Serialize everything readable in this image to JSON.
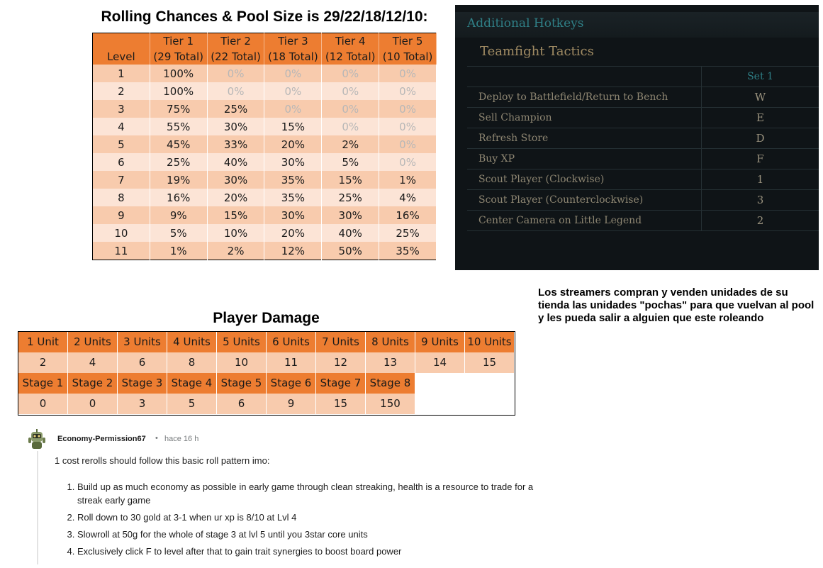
{
  "rolling": {
    "title": "Rolling Chances & Pool Size is 29/22/18/12/10:",
    "level_header": "Level",
    "tiers": [
      {
        "name": "Tier 1",
        "total": "(29 Total)"
      },
      {
        "name": "Tier 2",
        "total": "(22 Total)"
      },
      {
        "name": "Tier 3",
        "total": "(18 Total)"
      },
      {
        "name": "Tier 4",
        "total": "(12 Total)"
      },
      {
        "name": "Tier 5",
        "total": "(10 Total)"
      }
    ],
    "rows": [
      {
        "level": "1",
        "odds": [
          "100%",
          "0%",
          "0%",
          "0%",
          "0%"
        ]
      },
      {
        "level": "2",
        "odds": [
          "100%",
          "0%",
          "0%",
          "0%",
          "0%"
        ]
      },
      {
        "level": "3",
        "odds": [
          "75%",
          "25%",
          "0%",
          "0%",
          "0%"
        ]
      },
      {
        "level": "4",
        "odds": [
          "55%",
          "30%",
          "15%",
          "0%",
          "0%"
        ]
      },
      {
        "level": "5",
        "odds": [
          "45%",
          "33%",
          "20%",
          "2%",
          "0%"
        ]
      },
      {
        "level": "6",
        "odds": [
          "25%",
          "40%",
          "30%",
          "5%",
          "0%"
        ]
      },
      {
        "level": "7",
        "odds": [
          "19%",
          "30%",
          "35%",
          "15%",
          "1%"
        ]
      },
      {
        "level": "8",
        "odds": [
          "16%",
          "20%",
          "35%",
          "25%",
          "4%"
        ]
      },
      {
        "level": "9",
        "odds": [
          "9%",
          "15%",
          "30%",
          "30%",
          "16%"
        ]
      },
      {
        "level": "10",
        "odds": [
          "5%",
          "10%",
          "20%",
          "40%",
          "25%"
        ]
      },
      {
        "level": "11",
        "odds": [
          "1%",
          "2%",
          "12%",
          "50%",
          "35%"
        ]
      }
    ],
    "colors": {
      "header": "#ed7d31",
      "row_dark": "#f8cbad",
      "row_light": "#fce4d6",
      "zero_text": "#b7b7b7"
    }
  },
  "hotkeys": {
    "title": "Additional Hotkeys",
    "subtitle": "Teamfight Tactics",
    "column_header": "Set 1",
    "rows": [
      {
        "action": "Deploy to Battlefield/Return to Bench",
        "key": "W"
      },
      {
        "action": "Sell Champion",
        "key": "E"
      },
      {
        "action": "Refresh Store",
        "key": "D"
      },
      {
        "action": "Buy XP",
        "key": "F"
      },
      {
        "action": "Scout Player (Clockwise)",
        "key": "1"
      },
      {
        "action": "Scout Player (Counterclockwise)",
        "key": "3"
      },
      {
        "action": "Center Camera on Little Legend",
        "key": "2"
      }
    ]
  },
  "note": "Los streamers compran y venden unidades de su tienda las unidades \"pochas\" para que vuelvan al pool y les pueda salir a alguien que este roleando",
  "player_damage": {
    "title": "Player Damage",
    "units": [
      {
        "label": "1 Unit",
        "value": "2"
      },
      {
        "label": "2 Units",
        "value": "4"
      },
      {
        "label": "3 Units",
        "value": "6"
      },
      {
        "label": "4 Units",
        "value": "8"
      },
      {
        "label": "5 Units",
        "value": "10"
      },
      {
        "label": "6 Units",
        "value": "11"
      },
      {
        "label": "7 Units",
        "value": "12"
      },
      {
        "label": "8 Units",
        "value": "13"
      },
      {
        "label": "9 Units",
        "value": "14"
      },
      {
        "label": "10 Units",
        "value": "15"
      }
    ],
    "stages": [
      {
        "label": "Stage 1",
        "value": "0"
      },
      {
        "label": "Stage 2",
        "value": "0"
      },
      {
        "label": "Stage 3",
        "value": "3"
      },
      {
        "label": "Stage 4",
        "value": "5"
      },
      {
        "label": "Stage 5",
        "value": "6"
      },
      {
        "label": "Stage 6",
        "value": "9"
      },
      {
        "label": "Stage 7",
        "value": "15"
      },
      {
        "label": "Stage 8",
        "value": "150"
      }
    ]
  },
  "comment": {
    "avatar_icon": "robot-avatar-icon",
    "username": "Economy-Permission67",
    "separator": "•",
    "time": "hace 16 h",
    "intro": "1 cost rerolls should follow this basic roll pattern imo:",
    "steps": [
      "Build up as much economy as possible in early game through clean streaking, health is a resource to trade for a streak early game",
      "Roll down to 30 gold at 3-1 when ur xp is 8/10 at Lvl 4",
      "Slowroll at 50g for the whole of stage 3 at lvl 5 until you 3star core units",
      "Exclusively click F to level after that to gain trait synergies to boost board power"
    ]
  }
}
